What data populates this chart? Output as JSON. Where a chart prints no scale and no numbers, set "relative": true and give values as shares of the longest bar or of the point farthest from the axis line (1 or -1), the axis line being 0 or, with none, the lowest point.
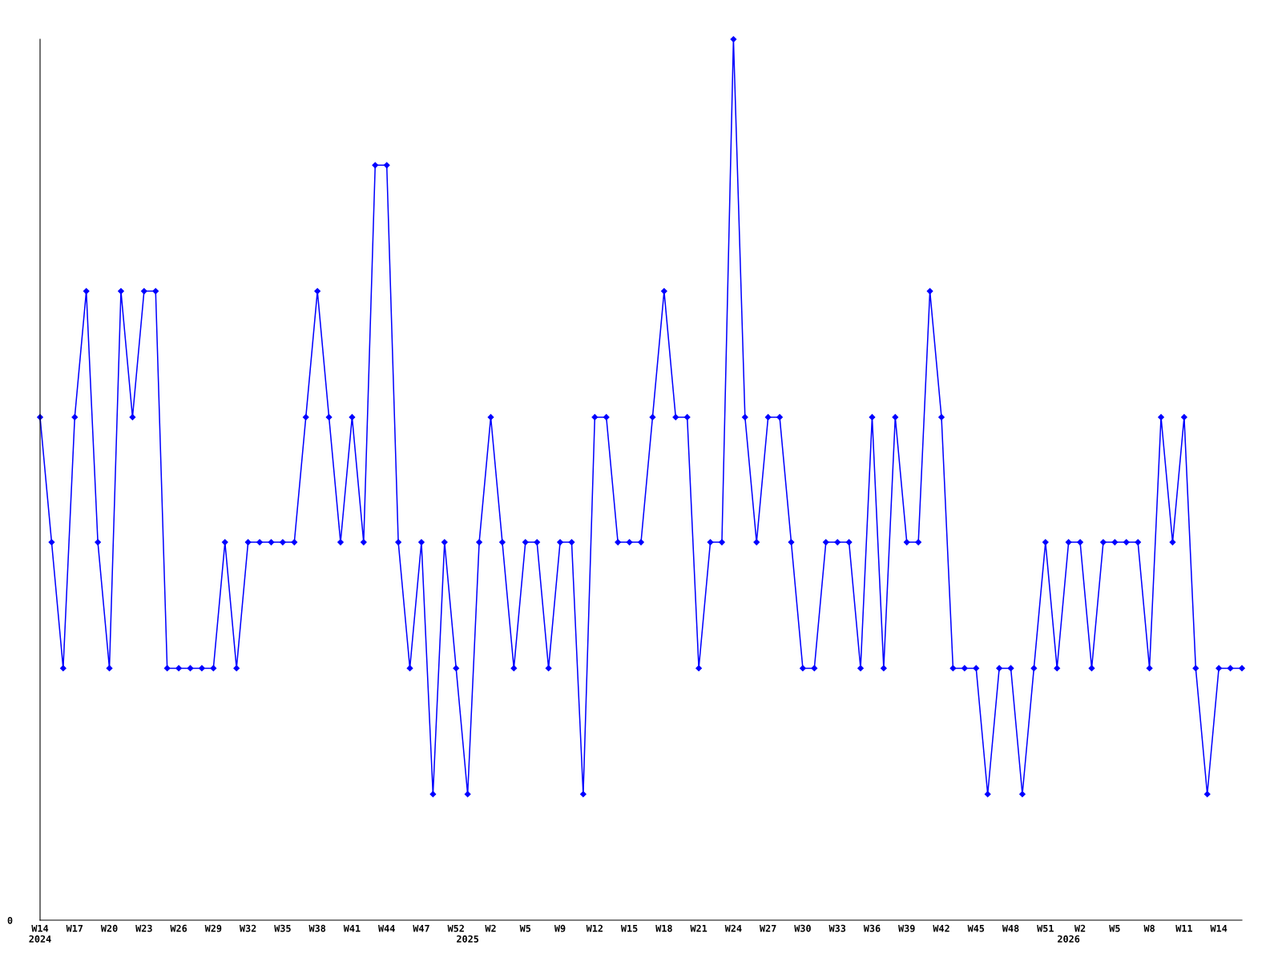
{
  "chart_data": {
    "type": "line",
    "relative": true,
    "color": "#0000ff",
    "marker": "diamond",
    "line_style": "solid",
    "grid": false,
    "legend": false,
    "annotations": [
      "0"
    ],
    "categories": [
      "W14\n2024",
      null,
      null,
      "W17",
      null,
      null,
      "W20",
      null,
      null,
      "W23",
      null,
      null,
      "W26",
      null,
      null,
      "W29",
      null,
      null,
      "W32",
      null,
      null,
      "W35",
      null,
      null,
      "W38",
      null,
      null,
      "W41",
      null,
      null,
      "W44",
      null,
      null,
      "W47",
      null,
      null,
      "W52",
      "\n2025",
      null,
      "W2",
      null,
      null,
      "W5",
      null,
      null,
      "W9",
      null,
      null,
      "W12",
      null,
      null,
      "W15",
      null,
      null,
      "W18",
      null,
      null,
      "W21",
      null,
      null,
      "W24",
      null,
      null,
      "W27",
      null,
      null,
      "W30",
      null,
      null,
      "W33",
      null,
      null,
      "W36",
      null,
      null,
      "W39",
      null,
      null,
      "W42",
      null,
      null,
      "W45",
      null,
      null,
      "W48",
      null,
      null,
      "W51",
      null,
      "\n2026",
      "W2",
      null,
      null,
      "W5",
      null,
      null,
      "W8",
      null,
      null,
      "W11",
      null,
      null,
      "W14",
      null,
      null
    ],
    "values": [
      0.571,
      0.429,
      0.286,
      0.571,
      0.714,
      0.429,
      0.286,
      0.714,
      0.571,
      0.714,
      0.714,
      0.286,
      0.286,
      0.286,
      0.286,
      0.286,
      0.429,
      0.286,
      0.429,
      0.429,
      0.429,
      0.429,
      0.429,
      0.571,
      0.714,
      0.571,
      0.429,
      0.571,
      0.429,
      0.857,
      0.857,
      0.429,
      0.286,
      0.429,
      0.143,
      0.429,
      0.286,
      0.143,
      0.429,
      0.571,
      0.429,
      0.286,
      0.429,
      0.429,
      0.286,
      0.429,
      0.429,
      0.143,
      0.571,
      0.571,
      0.429,
      0.429,
      0.429,
      0.571,
      0.714,
      0.571,
      0.571,
      0.286,
      0.429,
      0.429,
      1,
      0.571,
      0.429,
      0.571,
      0.571,
      0.429,
      0.286,
      0.286,
      0.429,
      0.429,
      0.429,
      0.286,
      0.571,
      0.286,
      0.571,
      0.429,
      0.429,
      0.714,
      0.571,
      0.286,
      0.286,
      0.286,
      0.143,
      0.286,
      0.286,
      0.143,
      0.286,
      0.429,
      0.286,
      0.429,
      0.429,
      0.286,
      0.429,
      0.429,
      0.429,
      0.429,
      0.286,
      0.571,
      0.429,
      0.571,
      0.286,
      0.143,
      0.286,
      0.286,
      0.286
    ]
  }
}
